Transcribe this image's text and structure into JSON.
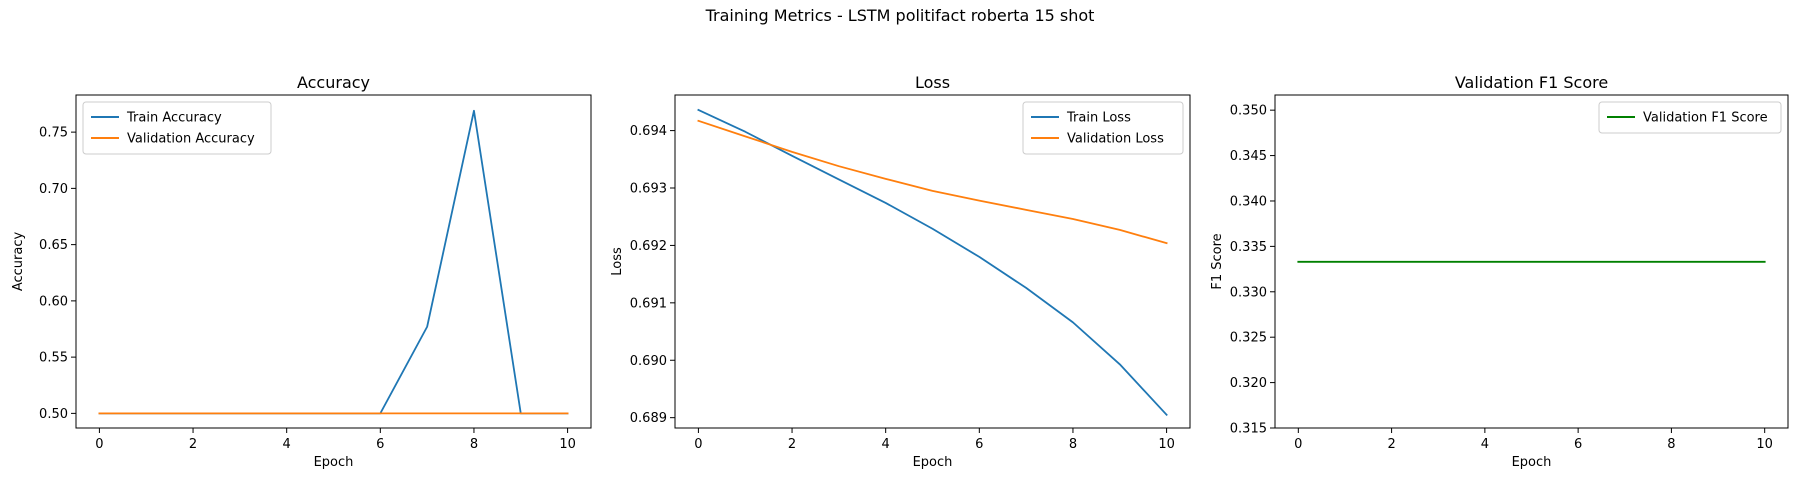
{
  "figure_title": "Training Metrics - LSTM politifact roberta 15 shot",
  "chart_data": [
    {
      "type": "line",
      "title": "Accuracy",
      "xlabel": "Epoch",
      "ylabel": "Accuracy",
      "x": [
        0,
        1,
        2,
        3,
        4,
        5,
        6,
        7,
        8,
        9,
        10
      ],
      "xlim": [
        -0.5,
        10.5
      ],
      "ylim": [
        0.487,
        0.783
      ],
      "xticks": [
        0,
        2,
        4,
        6,
        8,
        10
      ],
      "yticks": [
        0.5,
        0.55,
        0.6,
        0.65,
        0.7,
        0.75
      ],
      "ytick_labels": [
        "0.50",
        "0.55",
        "0.60",
        "0.65",
        "0.70",
        "0.75"
      ],
      "legend_position": "upper left",
      "grid": false,
      "series": [
        {
          "name": "Train Accuracy",
          "color": "#1f77b4",
          "values": [
            0.5,
            0.5,
            0.5,
            0.5,
            0.5,
            0.5,
            0.5,
            0.577,
            0.769,
            0.5,
            0.5
          ]
        },
        {
          "name": "Validation Accuracy",
          "color": "#ff7f0e",
          "values": [
            0.5,
            0.5,
            0.5,
            0.5,
            0.5,
            0.5,
            0.5,
            0.5,
            0.5,
            0.5,
            0.5
          ]
        }
      ]
    },
    {
      "type": "line",
      "title": "Loss",
      "xlabel": "Epoch",
      "ylabel": "Loss",
      "x": [
        0,
        1,
        2,
        3,
        4,
        5,
        6,
        7,
        8,
        9,
        10
      ],
      "xlim": [
        -0.5,
        10.5
      ],
      "ylim": [
        0.68882,
        0.69462
      ],
      "xticks": [
        0,
        2,
        4,
        6,
        8,
        10
      ],
      "yticks": [
        0.689,
        0.69,
        0.691,
        0.692,
        0.693,
        0.694
      ],
      "ytick_labels": [
        "0.689",
        "0.690",
        "0.691",
        "0.692",
        "0.693",
        "0.694"
      ],
      "legend_position": "upper right",
      "grid": false,
      "series": [
        {
          "name": "Train Loss",
          "color": "#1f77b4",
          "values": [
            0.69436,
            0.69398,
            0.69356,
            0.69315,
            0.69274,
            0.69229,
            0.6918,
            0.69126,
            0.69066,
            0.68993,
            0.68905
          ]
        },
        {
          "name": "Validation Loss",
          "color": "#ff7f0e",
          "values": [
            0.69417,
            0.6939,
            0.69363,
            0.69338,
            0.69316,
            0.69295,
            0.69278,
            0.69262,
            0.69246,
            0.69227,
            0.69204
          ]
        }
      ]
    },
    {
      "type": "line",
      "title": "Validation F1 Score",
      "xlabel": "Epoch",
      "ylabel": "F1 Score",
      "x": [
        0,
        1,
        2,
        3,
        4,
        5,
        6,
        7,
        8,
        9,
        10
      ],
      "xlim": [
        -0.5,
        10.5
      ],
      "ylim": [
        0.315,
        0.35167
      ],
      "xticks": [
        0,
        2,
        4,
        6,
        8,
        10
      ],
      "yticks": [
        0.315,
        0.32,
        0.325,
        0.33,
        0.335,
        0.34,
        0.345,
        0.35
      ],
      "ytick_labels": [
        "0.315",
        "0.320",
        "0.325",
        "0.330",
        "0.335",
        "0.340",
        "0.345",
        "0.350"
      ],
      "legend_position": "upper right",
      "grid": false,
      "series": [
        {
          "name": "Validation F1 Score",
          "color": "#008000",
          "values": [
            0.3333,
            0.3333,
            0.3333,
            0.3333,
            0.3333,
            0.3333,
            0.3333,
            0.3333,
            0.3333,
            0.3333,
            0.3333
          ]
        }
      ]
    }
  ]
}
